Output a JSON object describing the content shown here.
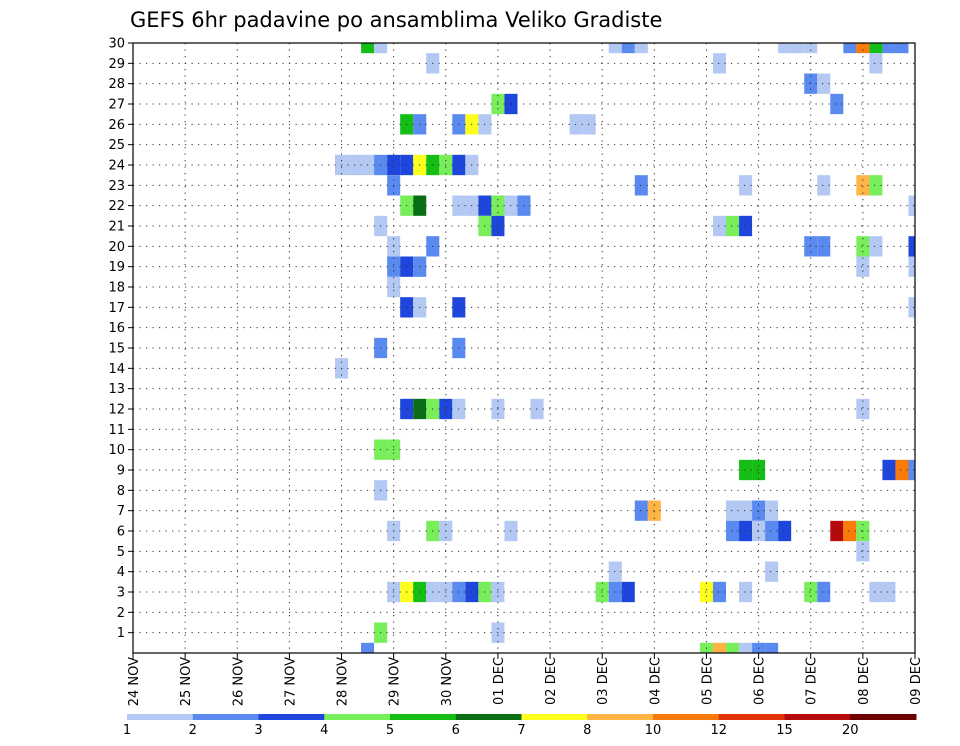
{
  "chart_data": {
    "type": "heatmap",
    "title": "GEFS 6hr padavine po ansamblima Veliko Gradiste",
    "xlabel": "",
    "ylabel": "",
    "x_unit": "6-hour step",
    "x_range": [
      0,
      60
    ],
    "y_range": [
      0,
      30
    ],
    "grid": "dotted",
    "legend_placement": "bottom",
    "x_ticks": [
      {
        "label": "24 NOV",
        "step": 0
      },
      {
        "label": "25 NOV",
        "step": 4
      },
      {
        "label": "26 NOV",
        "step": 8
      },
      {
        "label": "27 NOV",
        "step": 12
      },
      {
        "label": "28 NOV",
        "step": 16
      },
      {
        "label": "29 NOV",
        "step": 20
      },
      {
        "label": "30 NOV",
        "step": 24
      },
      {
        "label": "01 DEC",
        "step": 28
      },
      {
        "label": "02 DEC",
        "step": 32
      },
      {
        "label": "03 DEC",
        "step": 36
      },
      {
        "label": "04 DEC",
        "step": 40
      },
      {
        "label": "05 DEC",
        "step": 44
      },
      {
        "label": "06 DEC",
        "step": 48
      },
      {
        "label": "07 DEC",
        "step": 52
      },
      {
        "label": "08 DEC",
        "step": 56
      },
      {
        "label": "09 DEC",
        "step": 60
      }
    ],
    "y_tick_labels": [
      "1",
      "2",
      "3",
      "4",
      "5",
      "6",
      "7",
      "8",
      "9",
      "10",
      "11",
      "12",
      "13",
      "14",
      "15",
      "16",
      "17",
      "18",
      "19",
      "20",
      "21",
      "22",
      "23",
      "24",
      "25",
      "26",
      "27",
      "28",
      "29",
      "30"
    ],
    "colorbar": {
      "labels": [
        "1",
        "2",
        "3",
        "4",
        "5",
        "6",
        "7",
        "8",
        "10",
        "12",
        "15",
        "20"
      ],
      "colors": [
        "#b4c8f4",
        "#5a8af0",
        "#1e46dc",
        "#78ee5a",
        "#14be14",
        "#0a6e14",
        "#ffff1e",
        "#ffb446",
        "#fa7a0a",
        "#e1320a",
        "#b40a0a",
        "#6e0000"
      ]
    },
    "cells": [
      {
        "m": 30,
        "s": 18,
        "c": 5
      },
      {
        "m": 30,
        "s": 19,
        "c": 1
      },
      {
        "m": 30,
        "s": 37,
        "c": 1
      },
      {
        "m": 30,
        "s": 38,
        "c": 2
      },
      {
        "m": 30,
        "s": 39,
        "c": 1
      },
      {
        "m": 30,
        "s": 50,
        "c": 1
      },
      {
        "m": 30,
        "s": 51,
        "c": 1
      },
      {
        "m": 30,
        "s": 52,
        "c": 1
      },
      {
        "m": 30,
        "s": 55,
        "c": 2
      },
      {
        "m": 30,
        "s": 56,
        "c": 9
      },
      {
        "m": 30,
        "s": 57,
        "c": 5
      },
      {
        "m": 30,
        "s": 58,
        "c": 2
      },
      {
        "m": 30,
        "s": 59,
        "c": 2
      },
      {
        "m": 29,
        "s": 23,
        "c": 1
      },
      {
        "m": 29,
        "s": 45,
        "c": 1
      },
      {
        "m": 29,
        "s": 57,
        "c": 1
      },
      {
        "m": 28,
        "s": 52,
        "c": 2
      },
      {
        "m": 28,
        "s": 53,
        "c": 1
      },
      {
        "m": 27,
        "s": 28,
        "c": 4
      },
      {
        "m": 27,
        "s": 29,
        "c": 3
      },
      {
        "m": 27,
        "s": 54,
        "c": 2
      },
      {
        "m": 26,
        "s": 21,
        "c": 5
      },
      {
        "m": 26,
        "s": 22,
        "c": 2
      },
      {
        "m": 26,
        "s": 25,
        "c": 2
      },
      {
        "m": 26,
        "s": 26,
        "c": 7
      },
      {
        "m": 26,
        "s": 27,
        "c": 1
      },
      {
        "m": 26,
        "s": 34,
        "c": 1
      },
      {
        "m": 26,
        "s": 35,
        "c": 1
      },
      {
        "m": 24,
        "s": 16,
        "c": 1
      },
      {
        "m": 24,
        "s": 17,
        "c": 1
      },
      {
        "m": 24,
        "s": 18,
        "c": 1
      },
      {
        "m": 24,
        "s": 19,
        "c": 2
      },
      {
        "m": 24,
        "s": 20,
        "c": 3
      },
      {
        "m": 24,
        "s": 21,
        "c": 3
      },
      {
        "m": 24,
        "s": 22,
        "c": 7
      },
      {
        "m": 24,
        "s": 23,
        "c": 5
      },
      {
        "m": 24,
        "s": 24,
        "c": 4
      },
      {
        "m": 24,
        "s": 25,
        "c": 3
      },
      {
        "m": 24,
        "s": 26,
        "c": 1
      },
      {
        "m": 23,
        "s": 20,
        "c": 2
      },
      {
        "m": 23,
        "s": 39,
        "c": 2
      },
      {
        "m": 23,
        "s": 47,
        "c": 1
      },
      {
        "m": 23,
        "s": 53,
        "c": 1
      },
      {
        "m": 23,
        "s": 56,
        "c": 8
      },
      {
        "m": 23,
        "s": 57,
        "c": 4
      },
      {
        "m": 22,
        "s": 21,
        "c": 4
      },
      {
        "m": 22,
        "s": 22,
        "c": 6
      },
      {
        "m": 22,
        "s": 25,
        "c": 1
      },
      {
        "m": 22,
        "s": 26,
        "c": 1
      },
      {
        "m": 22,
        "s": 27,
        "c": 3
      },
      {
        "m": 22,
        "s": 28,
        "c": 4
      },
      {
        "m": 22,
        "s": 29,
        "c": 1
      },
      {
        "m": 22,
        "s": 30,
        "c": 2
      },
      {
        "m": 22,
        "s": 60,
        "c": 1
      },
      {
        "m": 21,
        "s": 19,
        "c": 1
      },
      {
        "m": 21,
        "s": 27,
        "c": 4
      },
      {
        "m": 21,
        "s": 28,
        "c": 3
      },
      {
        "m": 21,
        "s": 45,
        "c": 1
      },
      {
        "m": 21,
        "s": 46,
        "c": 4
      },
      {
        "m": 21,
        "s": 47,
        "c": 3
      },
      {
        "m": 20,
        "s": 20,
        "c": 1
      },
      {
        "m": 20,
        "s": 23,
        "c": 2
      },
      {
        "m": 20,
        "s": 52,
        "c": 2
      },
      {
        "m": 20,
        "s": 53,
        "c": 2
      },
      {
        "m": 20,
        "s": 56,
        "c": 4
      },
      {
        "m": 20,
        "s": 57,
        "c": 1
      },
      {
        "m": 20,
        "s": 60,
        "c": 3
      },
      {
        "m": 19,
        "s": 20,
        "c": 2
      },
      {
        "m": 19,
        "s": 21,
        "c": 3
      },
      {
        "m": 19,
        "s": 22,
        "c": 2
      },
      {
        "m": 19,
        "s": 56,
        "c": 1
      },
      {
        "m": 19,
        "s": 60,
        "c": 1
      },
      {
        "m": 18,
        "s": 20,
        "c": 1
      },
      {
        "m": 17,
        "s": 21,
        "c": 3
      },
      {
        "m": 17,
        "s": 22,
        "c": 1
      },
      {
        "m": 17,
        "s": 25,
        "c": 3
      },
      {
        "m": 17,
        "s": 60,
        "c": 1
      },
      {
        "m": 15,
        "s": 19,
        "c": 2
      },
      {
        "m": 15,
        "s": 25,
        "c": 2
      },
      {
        "m": 14,
        "s": 16,
        "c": 1
      },
      {
        "m": 12,
        "s": 21,
        "c": 3
      },
      {
        "m": 12,
        "s": 22,
        "c": 6
      },
      {
        "m": 12,
        "s": 23,
        "c": 4
      },
      {
        "m": 12,
        "s": 24,
        "c": 3
      },
      {
        "m": 12,
        "s": 25,
        "c": 1
      },
      {
        "m": 12,
        "s": 28,
        "c": 1
      },
      {
        "m": 12,
        "s": 31,
        "c": 1
      },
      {
        "m": 12,
        "s": 56,
        "c": 1
      },
      {
        "m": 10,
        "s": 19,
        "c": 4
      },
      {
        "m": 10,
        "s": 20,
        "c": 4
      },
      {
        "m": 9,
        "s": 47,
        "c": 5
      },
      {
        "m": 9,
        "s": 48,
        "c": 5
      },
      {
        "m": 9,
        "s": 58,
        "c": 3
      },
      {
        "m": 9,
        "s": 59,
        "c": 9
      },
      {
        "m": 9,
        "s": 60,
        "c": 2
      },
      {
        "m": 8,
        "s": 19,
        "c": 1
      },
      {
        "m": 7,
        "s": 39,
        "c": 2
      },
      {
        "m": 7,
        "s": 40,
        "c": 8
      },
      {
        "m": 7,
        "s": 46,
        "c": 1
      },
      {
        "m": 7,
        "s": 47,
        "c": 1
      },
      {
        "m": 7,
        "s": 48,
        "c": 2
      },
      {
        "m": 7,
        "s": 49,
        "c": 1
      },
      {
        "m": 6,
        "s": 20,
        "c": 1
      },
      {
        "m": 6,
        "s": 23,
        "c": 4
      },
      {
        "m": 6,
        "s": 24,
        "c": 1
      },
      {
        "m": 6,
        "s": 29,
        "c": 1
      },
      {
        "m": 6,
        "s": 46,
        "c": 2
      },
      {
        "m": 6,
        "s": 47,
        "c": 3
      },
      {
        "m": 6,
        "s": 48,
        "c": 1
      },
      {
        "m": 6,
        "s": 49,
        "c": 2
      },
      {
        "m": 6,
        "s": 50,
        "c": 3
      },
      {
        "m": 6,
        "s": 54,
        "c": 11
      },
      {
        "m": 6,
        "s": 55,
        "c": 9
      },
      {
        "m": 6,
        "s": 56,
        "c": 4
      },
      {
        "m": 5,
        "s": 56,
        "c": 1
      },
      {
        "m": 4,
        "s": 37,
        "c": 1
      },
      {
        "m": 4,
        "s": 49,
        "c": 1
      },
      {
        "m": 3,
        "s": 20,
        "c": 1
      },
      {
        "m": 3,
        "s": 21,
        "c": 7
      },
      {
        "m": 3,
        "s": 22,
        "c": 5
      },
      {
        "m": 3,
        "s": 23,
        "c": 1
      },
      {
        "m": 3,
        "s": 24,
        "c": 1
      },
      {
        "m": 3,
        "s": 25,
        "c": 2
      },
      {
        "m": 3,
        "s": 26,
        "c": 3
      },
      {
        "m": 3,
        "s": 27,
        "c": 4
      },
      {
        "m": 3,
        "s": 28,
        "c": 1
      },
      {
        "m": 3,
        "s": 36,
        "c": 4
      },
      {
        "m": 3,
        "s": 37,
        "c": 2
      },
      {
        "m": 3,
        "s": 38,
        "c": 3
      },
      {
        "m": 3,
        "s": 44,
        "c": 7
      },
      {
        "m": 3,
        "s": 45,
        "c": 2
      },
      {
        "m": 3,
        "s": 47,
        "c": 1
      },
      {
        "m": 3,
        "s": 52,
        "c": 4
      },
      {
        "m": 3,
        "s": 53,
        "c": 2
      },
      {
        "m": 3,
        "s": 57,
        "c": 1
      },
      {
        "m": 3,
        "s": 58,
        "c": 1
      },
      {
        "m": 1,
        "s": 19,
        "c": 4
      },
      {
        "m": 1,
        "s": 28,
        "c": 1
      },
      {
        "m": 0,
        "s": 18,
        "c": 2
      },
      {
        "m": 0,
        "s": 44,
        "c": 4
      },
      {
        "m": 0,
        "s": 45,
        "c": 8
      },
      {
        "m": 0,
        "s": 46,
        "c": 4
      },
      {
        "m": 0,
        "s": 47,
        "c": 1
      },
      {
        "m": 0,
        "s": 48,
        "c": 2
      },
      {
        "m": 0,
        "s": 49,
        "c": 2
      }
    ]
  }
}
